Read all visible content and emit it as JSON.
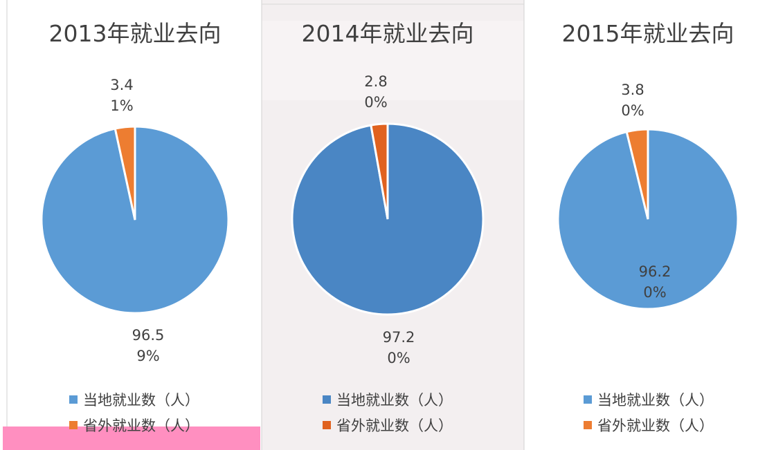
{
  "chart_data": [
    {
      "type": "pie",
      "title": "2013年就业去向",
      "categories": [
        "当地就业数（人）",
        "省外就业数（人）"
      ],
      "values": [
        96.59,
        3.41
      ],
      "value_labels": [
        "96.59%",
        "3.41%"
      ],
      "colors": [
        "#5b9bd5",
        "#ed7d31"
      ]
    },
    {
      "type": "pie",
      "title": "2014年就业去向",
      "categories": [
        "当地就业数（人）",
        "省外就业数（人）"
      ],
      "values": [
        97.2,
        2.8
      ],
      "value_labels": [
        "97.20%",
        "2.80%"
      ],
      "colors": [
        "#4a86c4",
        "#e0621f"
      ]
    },
    {
      "type": "pie",
      "title": "2015年就业去向",
      "categories": [
        "当地就业数（人）",
        "省外就业数（人）"
      ],
      "values": [
        96.2,
        3.8
      ],
      "value_labels": [
        "96.20%",
        "3.80%"
      ],
      "colors": [
        "#5b9bd5",
        "#ed7d31"
      ]
    }
  ]
}
